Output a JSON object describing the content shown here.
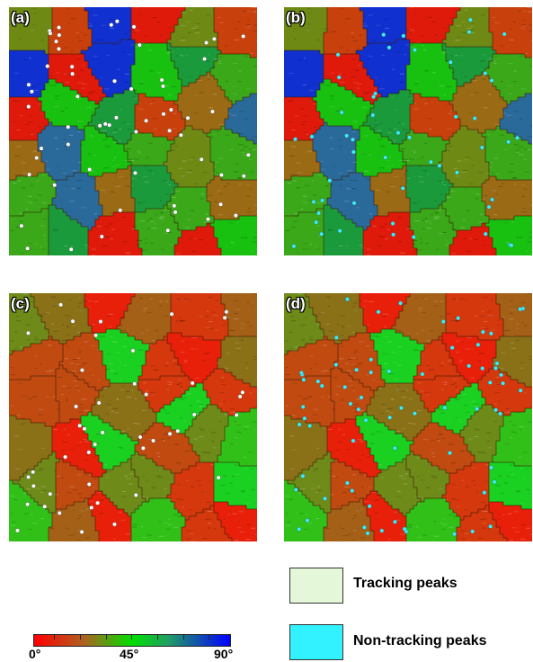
{
  "panels": [
    {
      "id": "pa",
      "label": "(a)",
      "palette": "abgreen",
      "peaks": "white",
      "peakCount": 60,
      "seed": 11
    },
    {
      "id": "pb",
      "label": "(b)",
      "palette": "abgreen",
      "peaks": "cyan",
      "peakCount": 50,
      "seed": 11
    },
    {
      "id": "pc",
      "label": "(c)",
      "palette": "cdred",
      "peaks": "white",
      "peakCount": 45,
      "seed": 29
    },
    {
      "id": "pd",
      "label": "(d)",
      "palette": "cdred",
      "peaks": "cyan",
      "peakCount": 70,
      "seed": 29
    }
  ],
  "legend": {
    "tracking_label": "Tracking peaks",
    "tracking_color": "#e4f7d8",
    "nontracking_label": "Non-tracking peaks",
    "nontracking_color": "#33f2ff"
  },
  "colorbar": {
    "min_label": "0°",
    "mid_label": "45°",
    "max_label": "90°",
    "colors": [
      "#ff0000",
      "#b06020",
      "#00e000",
      "#20a060",
      "#0000ff"
    ]
  }
}
